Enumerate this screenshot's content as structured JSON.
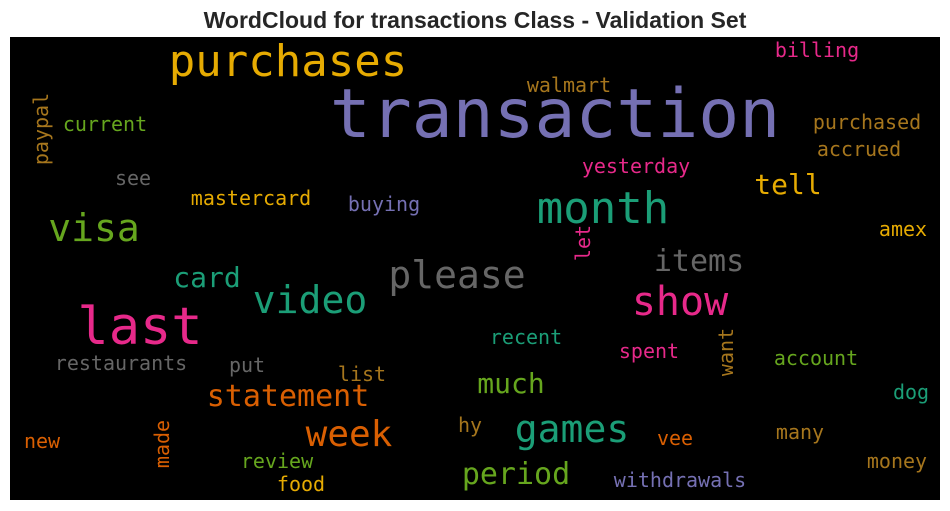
{
  "chart_data": {
    "type": "wordcloud",
    "title": "WordCloud for transactions Class - Validation Set",
    "words": [
      {
        "text": "transaction",
        "color": "#7570b3"
      },
      {
        "text": "purchases",
        "color": "#e6ab02"
      },
      {
        "text": "last",
        "color": "#e7298a"
      },
      {
        "text": "show",
        "color": "#e7298a"
      },
      {
        "text": "month",
        "color": "#1b9e77"
      },
      {
        "text": "visa",
        "color": "#66a61e"
      },
      {
        "text": "video",
        "color": "#1b9e77"
      },
      {
        "text": "please",
        "color": "#666666"
      },
      {
        "text": "games",
        "color": "#1b9e77"
      },
      {
        "text": "week",
        "color": "#d95f02"
      },
      {
        "text": "items",
        "color": "#666666"
      },
      {
        "text": "card",
        "color": "#1b9e77"
      },
      {
        "text": "statement",
        "color": "#d95f02"
      },
      {
        "text": "period",
        "color": "#66a61e"
      },
      {
        "text": "much",
        "color": "#66a61e"
      },
      {
        "text": "tell",
        "color": "#e6ab02"
      },
      {
        "text": "billing",
        "color": "#e7298a"
      },
      {
        "text": "walmart",
        "color": "#a6761d"
      },
      {
        "text": "purchased",
        "color": "#a6761d"
      },
      {
        "text": "accrued",
        "color": "#a6761d"
      },
      {
        "text": "current",
        "color": "#66a61e"
      },
      {
        "text": "paypal",
        "color": "#a6761d"
      },
      {
        "text": "yesterday",
        "color": "#e7298a"
      },
      {
        "text": "see",
        "color": "#666666"
      },
      {
        "text": "mastercard",
        "color": "#e6ab02"
      },
      {
        "text": "buying",
        "color": "#7570b3"
      },
      {
        "text": "amex",
        "color": "#e6ab02"
      },
      {
        "text": "let",
        "color": "#e7298a"
      },
      {
        "text": "recent",
        "color": "#1b9e77"
      },
      {
        "text": "spent",
        "color": "#e7298a"
      },
      {
        "text": "want",
        "color": "#a6761d"
      },
      {
        "text": "account",
        "color": "#66a61e"
      },
      {
        "text": "restaurants",
        "color": "#666666"
      },
      {
        "text": "put",
        "color": "#666666"
      },
      {
        "text": "list",
        "color": "#a6761d"
      },
      {
        "text": "dog",
        "color": "#1b9e77"
      },
      {
        "text": "new",
        "color": "#d95f02"
      },
      {
        "text": "made",
        "color": "#d95f02"
      },
      {
        "text": "hy",
        "color": "#a6761d"
      },
      {
        "text": "vee",
        "color": "#d95f02"
      },
      {
        "text": "many",
        "color": "#a6761d"
      },
      {
        "text": "review",
        "color": "#66a61e"
      },
      {
        "text": "money",
        "color": "#a6761d"
      },
      {
        "text": "food",
        "color": "#e6ab02"
      },
      {
        "text": "withdrawals",
        "color": "#7570b3"
      }
    ]
  }
}
